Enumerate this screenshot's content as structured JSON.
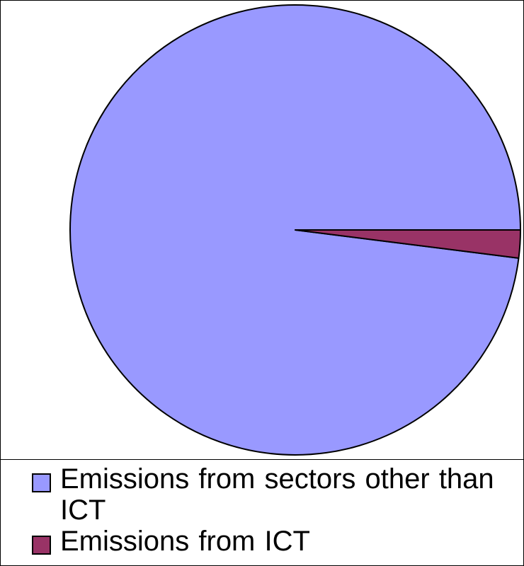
{
  "chart_data": {
    "type": "pie",
    "title": "",
    "series": [
      {
        "values": [
          98,
          2
        ]
      }
    ],
    "labels": [
      "Emissions from sectors other than ICT",
      "Emissions from ICT"
    ],
    "colors": [
      "#9999FF",
      "#993366"
    ],
    "start_angle_deg": 0,
    "direction": "counterclockwise",
    "legend_position": "bottom"
  }
}
